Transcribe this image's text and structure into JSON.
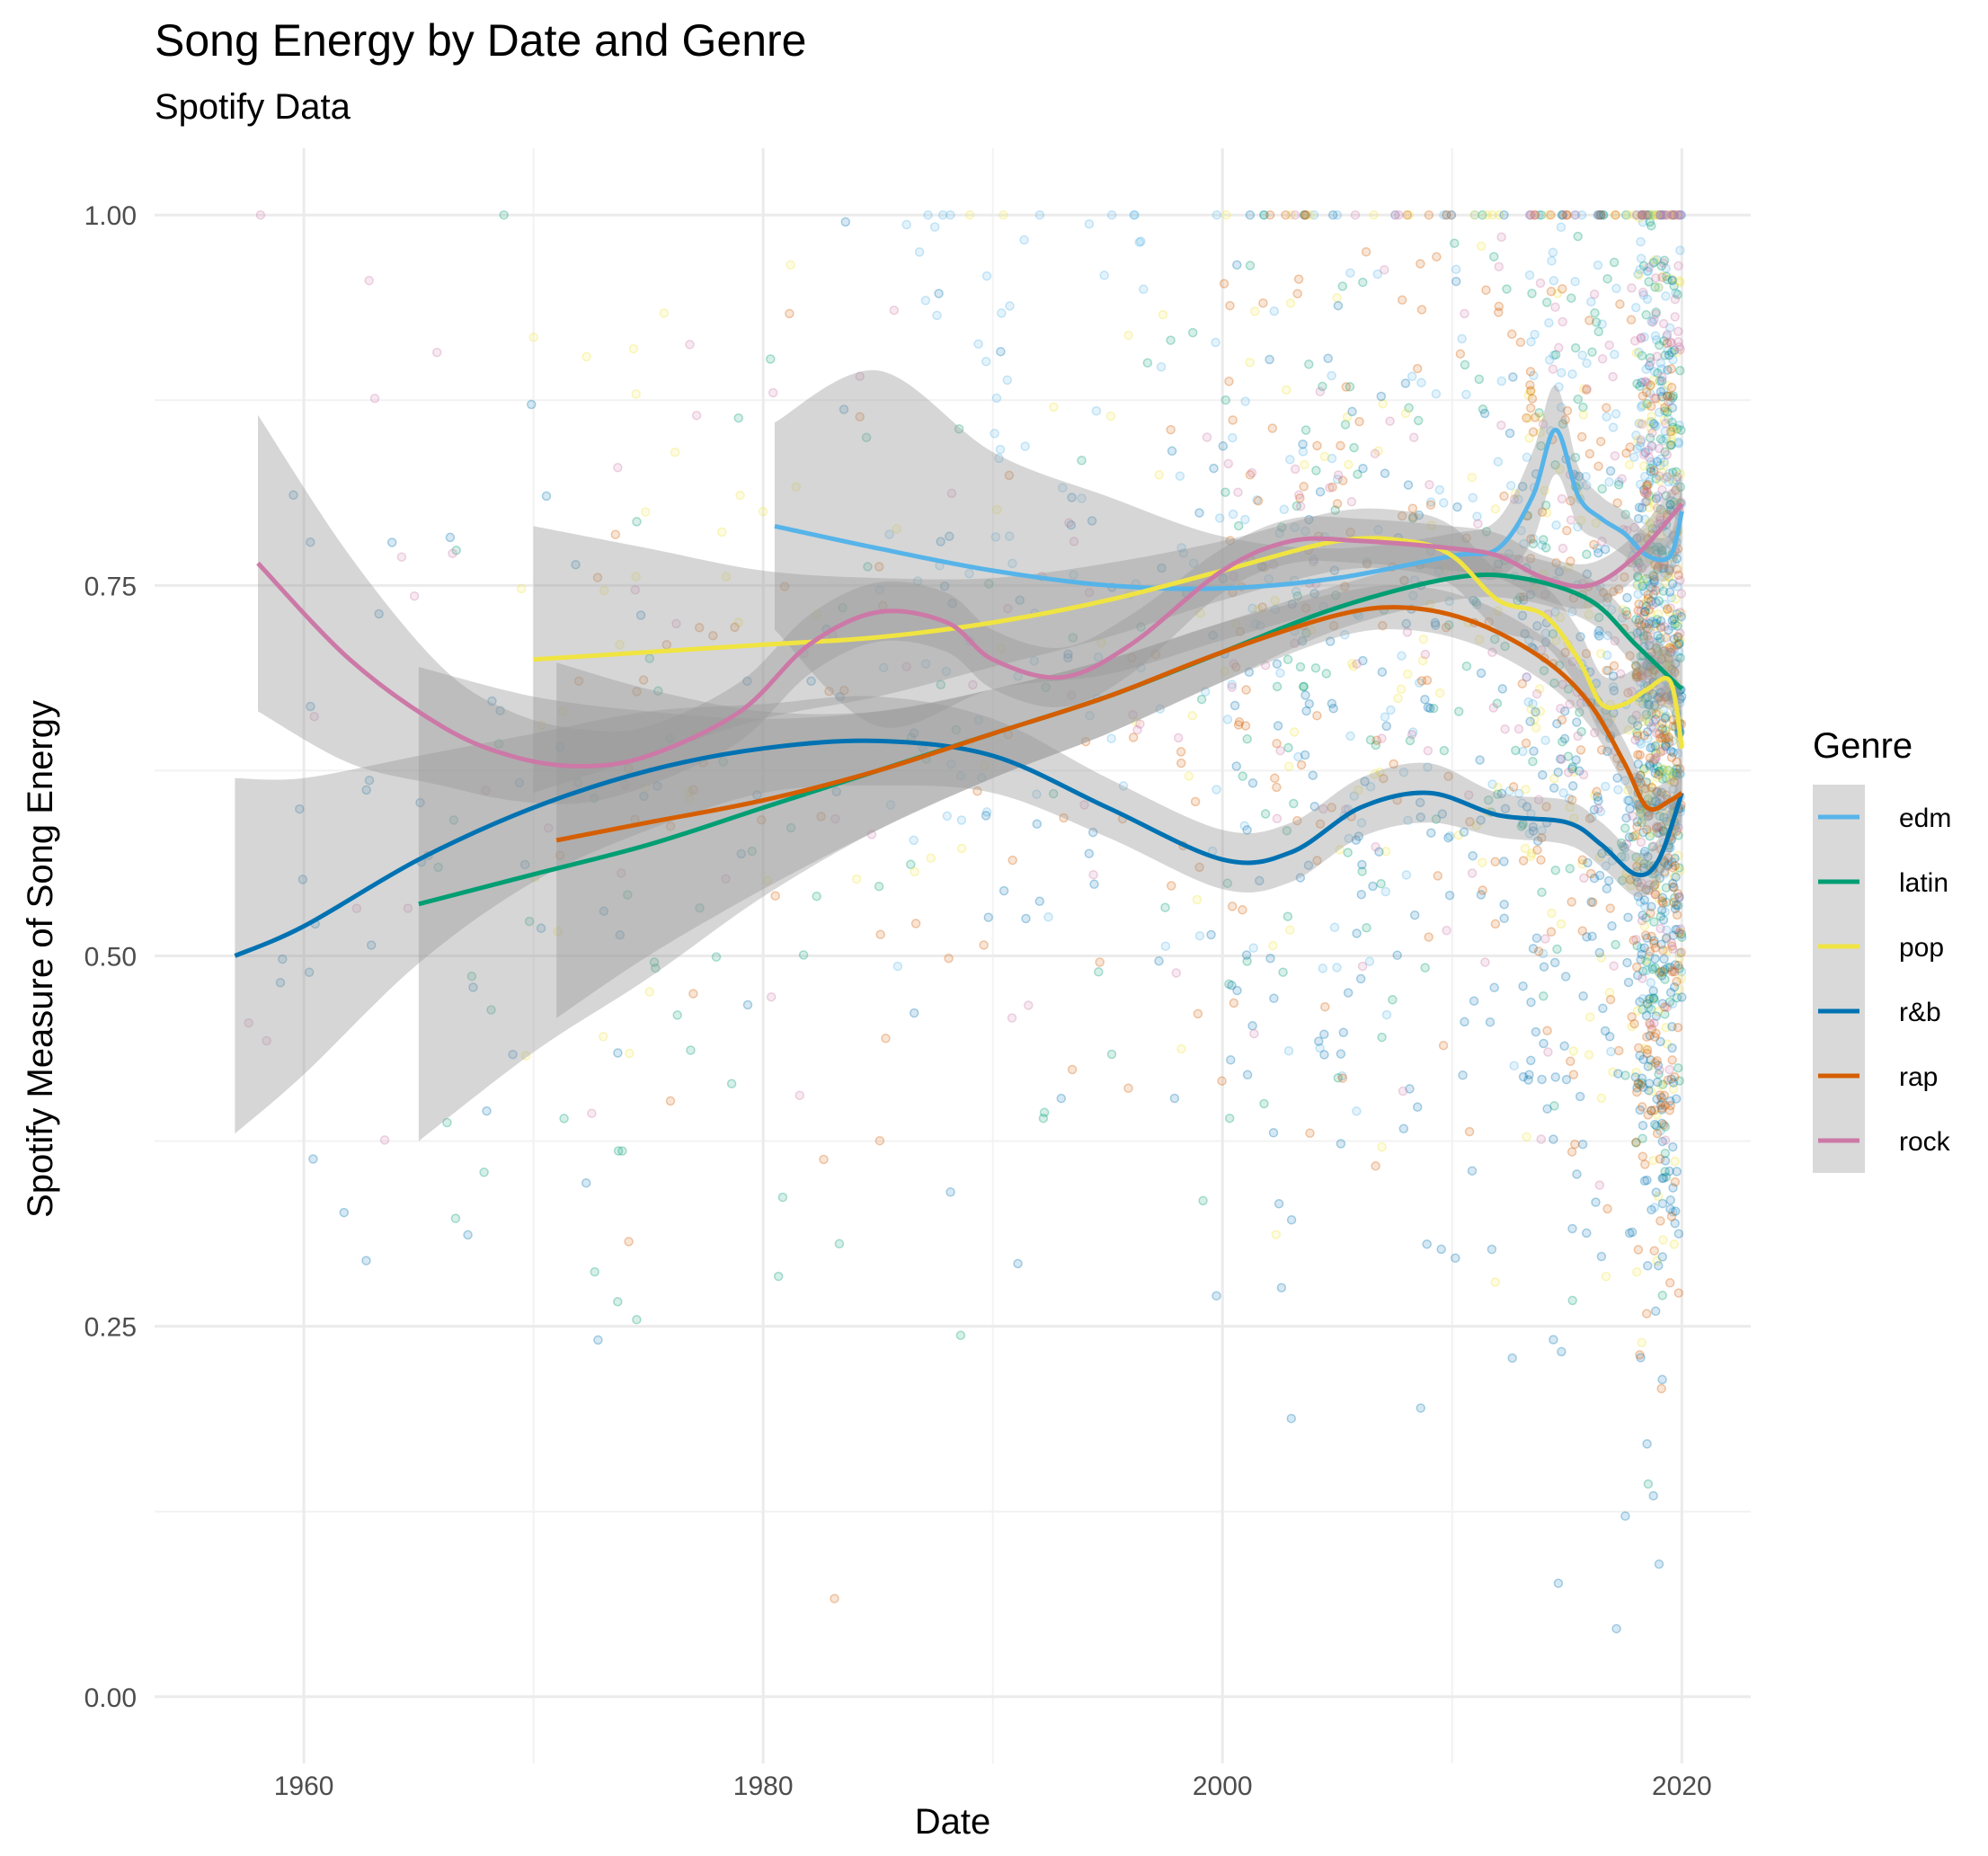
{
  "chart_data": {
    "type": "scatter",
    "title": "Song Energy by Date and Genre",
    "subtitle": "Spotify Data",
    "xlabel": "Date",
    "ylabel": "Spotify Measure of Song Energy",
    "xlim": [
      1953.5,
      2023.0
    ],
    "ylim": [
      -0.045,
      1.045
    ],
    "x_ticks": [
      1960,
      1980,
      2000,
      2020
    ],
    "x_tick_labels": [
      "1960",
      "1980",
      "2000",
      "2020"
    ],
    "y_ticks": [
      0.0,
      0.25,
      0.5,
      0.75,
      1.0
    ],
    "y_tick_labels": [
      "0.00",
      "0.25",
      "0.50",
      "0.75",
      "1.00"
    ],
    "grid": true,
    "legend": {
      "title": "Genre",
      "position": "right"
    },
    "series": [
      {
        "name": "edm",
        "color": "#56B4E9",
        "x": [
          1980.5,
          1985,
          1990,
          1995,
          2000,
          2005,
          2010,
          2012,
          2013.5,
          2014.5,
          2015.5,
          2016.5,
          2017.5,
          2018.5,
          2019.5,
          2020
        ],
        "y": [
          0.79,
          0.775,
          0.76,
          0.75,
          0.748,
          0.755,
          0.77,
          0.775,
          0.81,
          0.855,
          0.81,
          0.795,
          0.785,
          0.77,
          0.77,
          0.8
        ],
        "band": [
          0.07,
          0.12,
          0.08,
          0.06,
          0.035,
          0.02,
          0.015,
          0.02,
          0.03,
          0.03,
          0.02,
          0.015,
          0.015,
          0.015,
          0.015,
          0.02
        ]
      },
      {
        "name": "latin",
        "color": "#009E73",
        "x": [
          1965,
          1970,
          1975,
          1980,
          1985,
          1990,
          1995,
          2000,
          2005,
          2010,
          2013,
          2016,
          2018,
          2020
        ],
        "y": [
          0.535,
          0.555,
          0.575,
          0.6,
          0.625,
          0.65,
          0.675,
          0.705,
          0.735,
          0.755,
          0.755,
          0.74,
          0.71,
          0.68
        ],
        "band": [
          0.16,
          0.12,
          0.09,
          0.06,
          0.04,
          0.03,
          0.025,
          0.02,
          0.015,
          0.015,
          0.015,
          0.015,
          0.015,
          0.02
        ]
      },
      {
        "name": "pop",
        "color": "#F0E442",
        "x": [
          1970,
          1975,
          1980,
          1985,
          1990,
          1995,
          2000,
          2005,
          2008,
          2010,
          2012,
          2014,
          2015.5,
          2016.5,
          2017.5,
          2018.5,
          2019.5,
          2020
        ],
        "y": [
          0.7,
          0.705,
          0.71,
          0.715,
          0.725,
          0.74,
          0.76,
          0.78,
          0.78,
          0.77,
          0.74,
          0.73,
          0.7,
          0.67,
          0.67,
          0.68,
          0.685,
          0.64
        ],
        "band": [
          0.09,
          0.07,
          0.05,
          0.04,
          0.03,
          0.025,
          0.02,
          0.02,
          0.02,
          0.02,
          0.02,
          0.02,
          0.02,
          0.02,
          0.02,
          0.02,
          0.02,
          0.025
        ]
      },
      {
        "name": "r&b",
        "color": "#0072B2",
        "x": [
          1957,
          1960,
          1965,
          1970,
          1975,
          1980,
          1985,
          1990,
          1995,
          2000,
          2003,
          2006,
          2009,
          2012,
          2015,
          2016.5,
          2018,
          2019,
          2020
        ],
        "y": [
          0.5,
          0.52,
          0.565,
          0.6,
          0.625,
          0.64,
          0.645,
          0.635,
          0.6,
          0.565,
          0.57,
          0.6,
          0.61,
          0.595,
          0.59,
          0.575,
          0.555,
          0.565,
          0.61
        ],
        "band": [
          0.12,
          0.1,
          0.07,
          0.05,
          0.04,
          0.03,
          0.03,
          0.025,
          0.02,
          0.02,
          0.02,
          0.02,
          0.02,
          0.015,
          0.015,
          0.015,
          0.015,
          0.015,
          0.02
        ]
      },
      {
        "name": "rap",
        "color": "#D55E00",
        "x": [
          1971,
          1975,
          1980,
          1985,
          1990,
          1995,
          2000,
          2005,
          2008,
          2011,
          2014,
          2016,
          2017.5,
          2018.5,
          2019.5,
          2020
        ],
        "y": [
          0.578,
          0.59,
          0.605,
          0.625,
          0.65,
          0.675,
          0.705,
          0.73,
          0.735,
          0.725,
          0.7,
          0.67,
          0.63,
          0.6,
          0.605,
          0.61
        ],
        "band": [
          0.12,
          0.09,
          0.06,
          0.04,
          0.03,
          0.025,
          0.02,
          0.015,
          0.015,
          0.015,
          0.015,
          0.015,
          0.015,
          0.015,
          0.015,
          0.02
        ]
      },
      {
        "name": "rock",
        "color": "#CC79A7",
        "x": [
          1958,
          1962,
          1966,
          1969,
          1972,
          1975,
          1979,
          1982,
          1985,
          1988,
          1990,
          1993,
          1996,
          2000,
          2003,
          2006,
          2010,
          2012,
          2014,
          2016,
          2018,
          2020
        ],
        "y": [
          0.765,
          0.7,
          0.655,
          0.635,
          0.628,
          0.635,
          0.665,
          0.71,
          0.732,
          0.725,
          0.7,
          0.688,
          0.71,
          0.76,
          0.78,
          0.78,
          0.775,
          0.77,
          0.755,
          0.75,
          0.77,
          0.805
        ],
        "band": [
          0.1,
          0.07,
          0.04,
          0.03,
          0.025,
          0.02,
          0.02,
          0.02,
          0.02,
          0.02,
          0.02,
          0.02,
          0.02,
          0.015,
          0.015,
          0.015,
          0.015,
          0.015,
          0.015,
          0.015,
          0.015,
          0.02
        ]
      }
    ]
  }
}
